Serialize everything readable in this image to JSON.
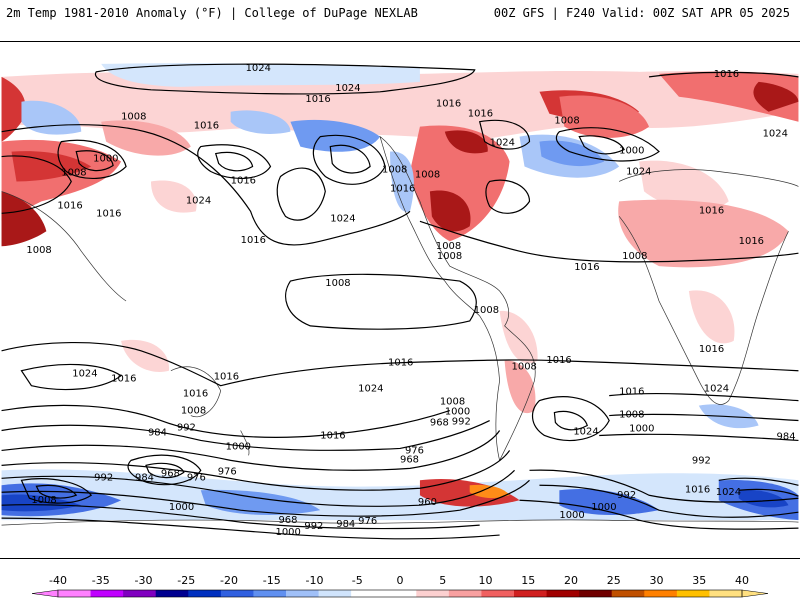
{
  "header": {
    "left": "2m Temp 1981-2010 Anomaly (°F) | College of DuPage NEXLAB",
    "right": "00Z GFS | F240 Valid: 00Z SAT APR 05 2025"
  },
  "map": {
    "contour_labels": [
      "1024",
      "1016",
      "1008",
      "1000",
      "992",
      "984",
      "976",
      "968",
      "960"
    ],
    "pressure_unit": "mb"
  },
  "colorbar": {
    "ticks": [
      "-40",
      "-35",
      "-30",
      "-25",
      "-20",
      "-15",
      "-10",
      "-5",
      "0",
      "5",
      "10",
      "15",
      "20",
      "25",
      "30",
      "35",
      "40"
    ],
    "colors": [
      "#ff80ff",
      "#c000ff",
      "#8000c0",
      "#000090",
      "#0030c0",
      "#3060e0",
      "#6090f0",
      "#a0c0f8",
      "#d0e4fc",
      "#ffffff",
      "#ffffff",
      "#fcd0d0",
      "#f8a0a0",
      "#f06060",
      "#d02020",
      "#a00000",
      "#700000",
      "#c05000",
      "#ff8000",
      "#ffc000",
      "#ffe080"
    ]
  }
}
